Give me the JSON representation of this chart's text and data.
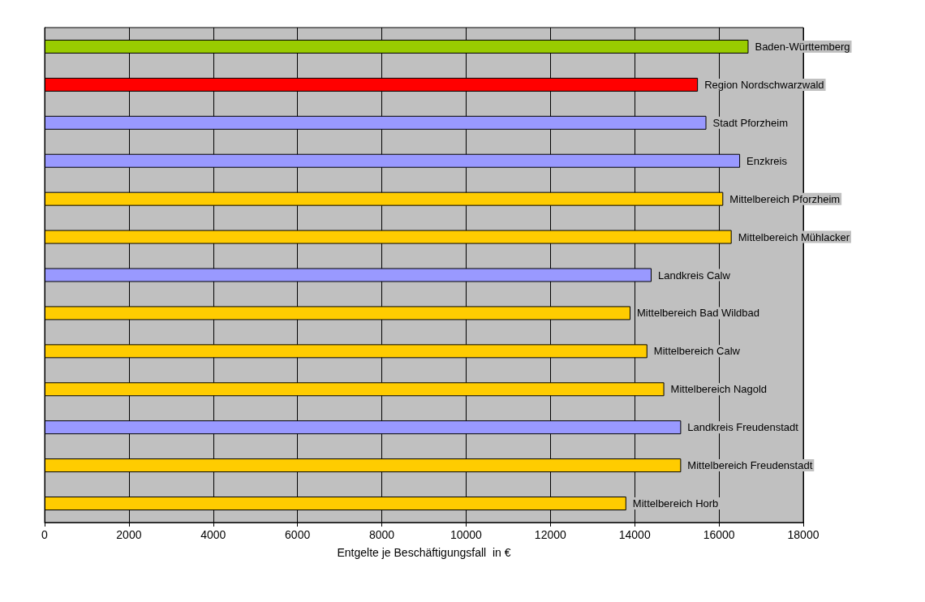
{
  "chart_data": {
    "type": "bar",
    "orientation": "horizontal",
    "xlabel": "Entgelte je Beschäftigungsfall  in €",
    "categories": [
      "Baden-Württemberg",
      "Region Nordschwarzwald",
      "Stadt Pforzheim",
      "Enzkreis",
      "Mittelbereich Pforzheim",
      "Mittelbereich Mühlacker",
      "Landkreis Calw",
      "Mittelbereich Bad Wildbad",
      "Mittelbereich Calw",
      "Mittelbereich Nagold",
      "Landkreis Freudenstadt",
      "Mittelbereich Freudenstadt",
      "Mittelbereich Horb"
    ],
    "values": [
      16700,
      15500,
      15700,
      16500,
      16100,
      16300,
      14400,
      13900,
      14300,
      14700,
      15100,
      15100,
      13800
    ],
    "colors": [
      "#99cc00",
      "#ff0000",
      "#9999ff",
      "#9999ff",
      "#ffcc00",
      "#ffcc00",
      "#9999ff",
      "#ffcc00",
      "#ffcc00",
      "#ffcc00",
      "#9999ff",
      "#ffcc00",
      "#ffcc00"
    ],
    "xlim": [
      0,
      18000
    ],
    "xticks": [
      0,
      2000,
      4000,
      6000,
      8000,
      10000,
      12000,
      14000,
      16000,
      18000
    ],
    "grid": "x",
    "tick_labels": "x"
  }
}
